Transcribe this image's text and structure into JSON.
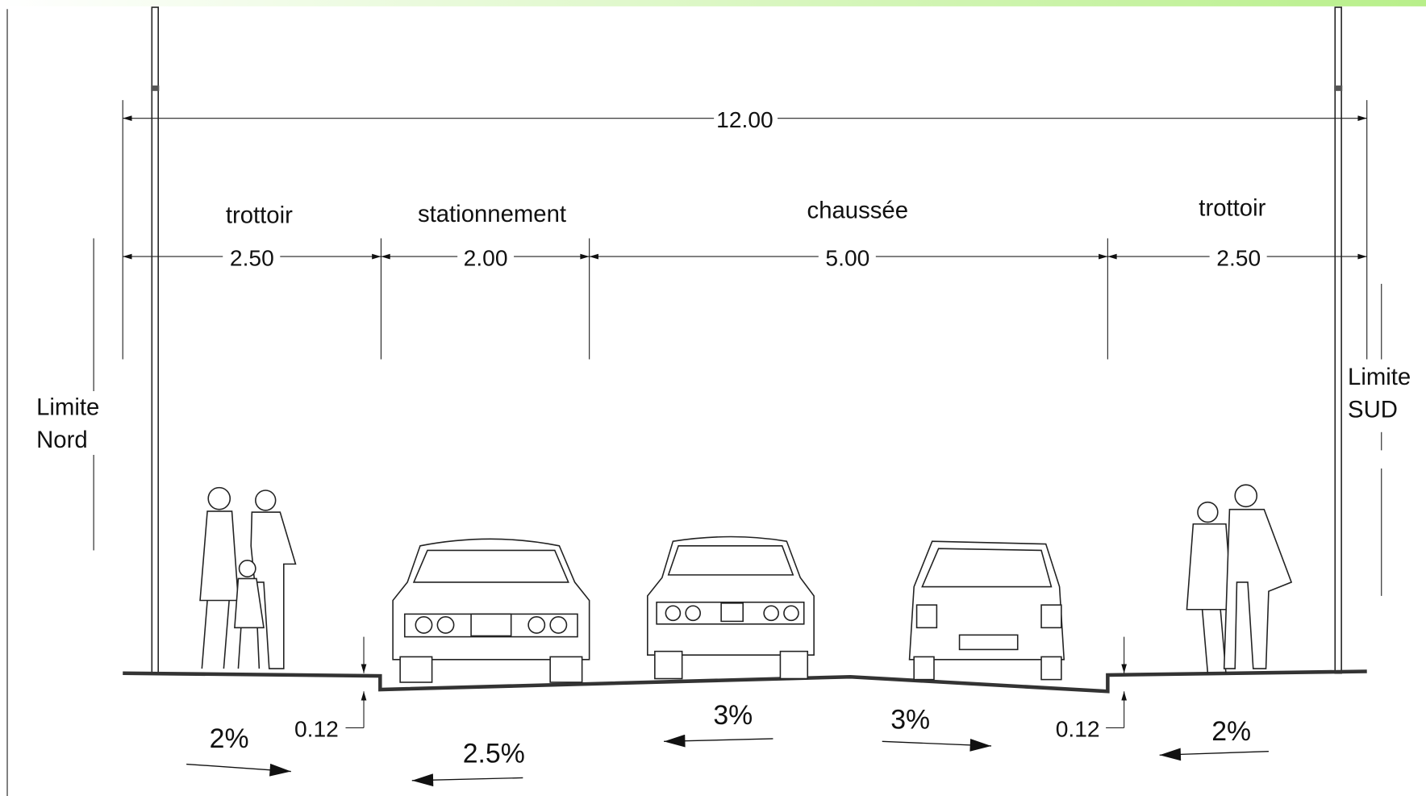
{
  "total_width": "12.00",
  "segments": [
    {
      "label": "trottoir",
      "width": "2.50"
    },
    {
      "label": "stationnement",
      "width": "2.00"
    },
    {
      "label": "chaussée",
      "width": "5.00"
    },
    {
      "label": "trottoir",
      "width": "2.50"
    }
  ],
  "limits": {
    "north": [
      "Limite",
      "Nord"
    ],
    "south": [
      "Limite",
      "SUD"
    ]
  },
  "curb_heights": [
    "0.12",
    "0.12"
  ],
  "slopes": [
    "2%",
    "2.5%",
    "3%",
    "3%",
    "2%"
  ]
}
